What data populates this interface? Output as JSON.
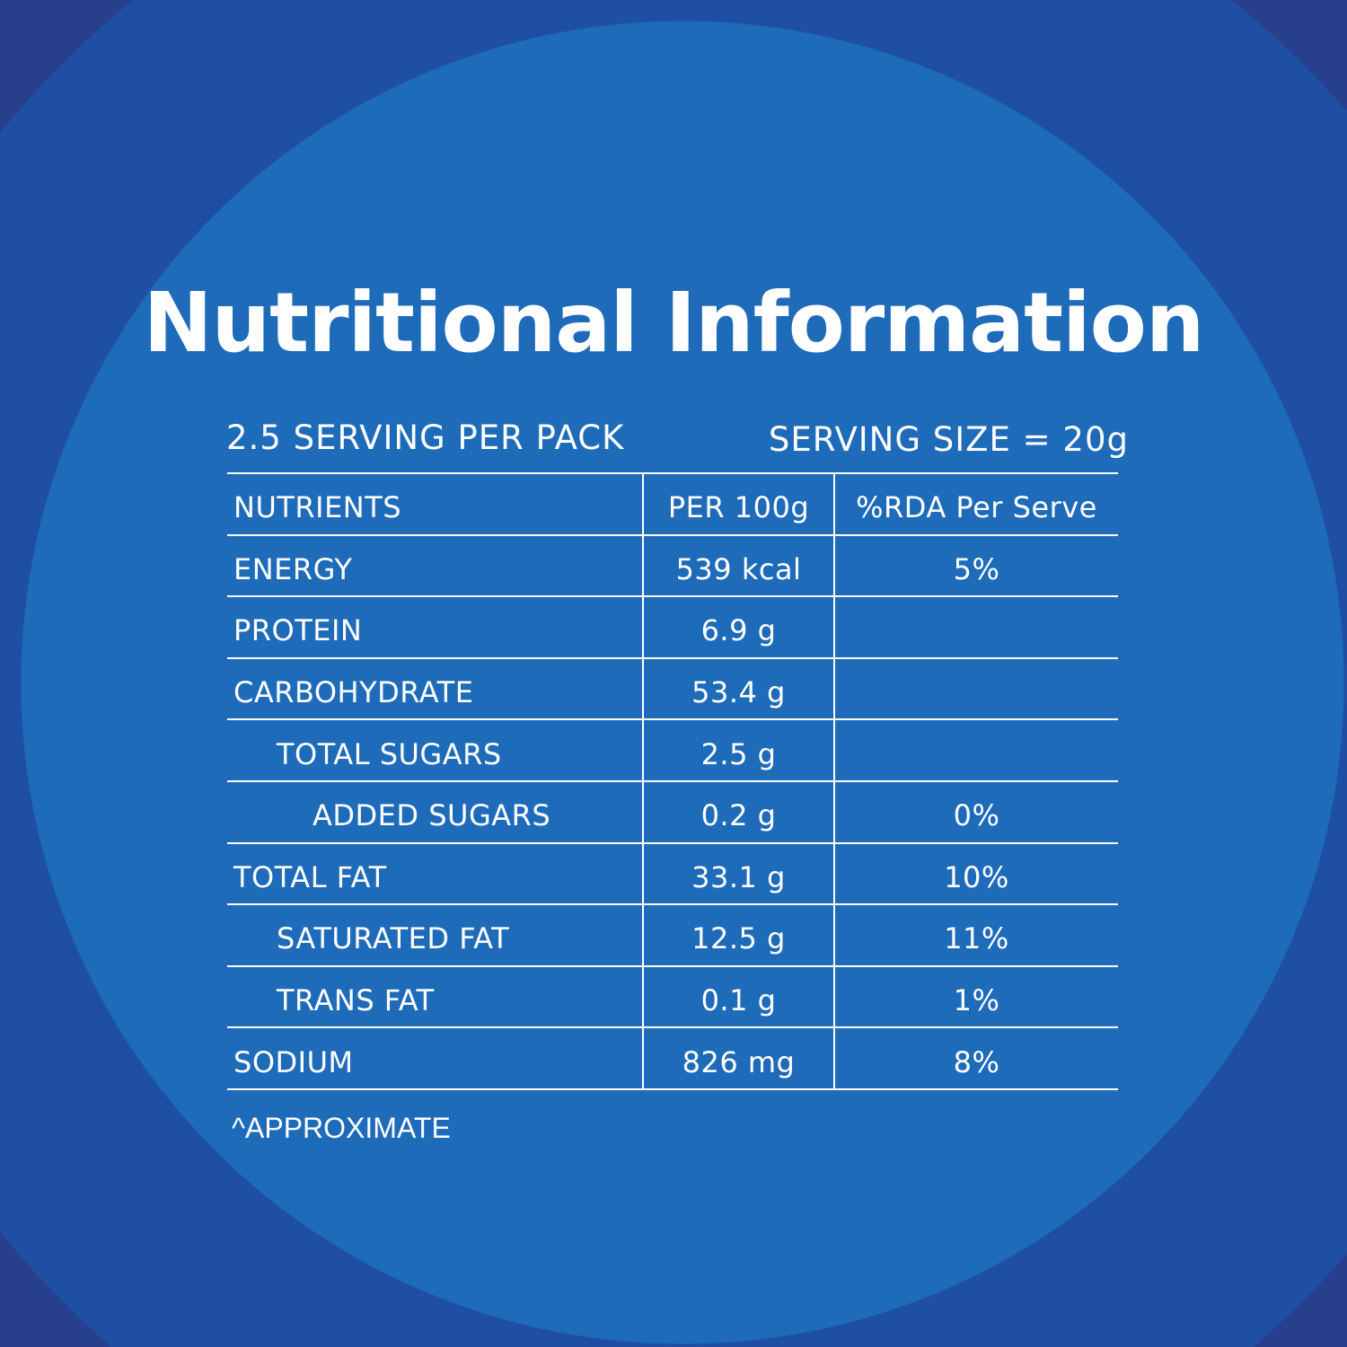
{
  "title": "Nutritional Information",
  "servings_per_pack": "2.5 SERVING PER PACK",
  "serving_size": "SERVING SIZE = 20g",
  "table": {
    "headers": [
      "NUTRIENTS",
      "PER 100g",
      "%RDA Per Serve"
    ],
    "rows": [
      {
        "nutrient": "ENERGY",
        "per100": "539 kcal",
        "rda": "5%",
        "indent": 0
      },
      {
        "nutrient": "PROTEIN",
        "per100": "6.9 g",
        "rda": "",
        "indent": 0
      },
      {
        "nutrient": "CARBOHYDRATE",
        "per100": "53.4 g",
        "rda": "",
        "indent": 0
      },
      {
        "nutrient": "TOTAL SUGARS",
        "per100": "2.5 g",
        "rda": "",
        "indent": 1
      },
      {
        "nutrient": "ADDED SUGARS",
        "per100": "0.2 g",
        "rda": "0%",
        "indent": 2
      },
      {
        "nutrient": "TOTAL FAT",
        "per100": "33.1 g",
        "rda": "10%",
        "indent": 0
      },
      {
        "nutrient": "SATURATED FAT",
        "per100": "12.5 g",
        "rda": "11%",
        "indent": 1
      },
      {
        "nutrient": "TRANS FAT",
        "per100": "0.1 g",
        "rda": "1%",
        "indent": 1
      },
      {
        "nutrient": "SODIUM",
        "per100": "826 mg",
        "rda": "8%",
        "indent": 0
      }
    ]
  },
  "footnote": "^APPROXIMATE",
  "colors": {
    "inner": "#1e6bba",
    "mid_ring": "#1f4fa3",
    "outer_ring": "#283f8e",
    "text": "#ffffff"
  }
}
